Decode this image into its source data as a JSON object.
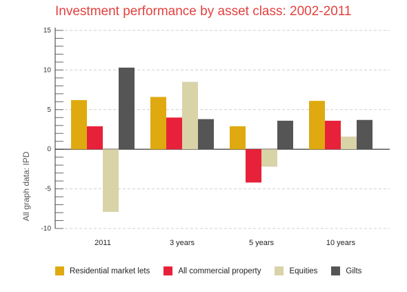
{
  "chart_data": {
    "type": "bar",
    "title": "Investment performance by asset class: 2002-2011",
    "ylabel": "All graph data: IPD",
    "xlabel": "",
    "ylim": [
      -10,
      15
    ],
    "yticks": [
      15,
      10,
      5,
      0,
      -5,
      -10
    ],
    "categories": [
      "2011",
      "3 years",
      "5 years",
      "10 years"
    ],
    "grid": true,
    "legend_position": "bottom",
    "series": [
      {
        "name": "Residential market lets",
        "color": "#dfaa10",
        "values": [
          6.2,
          6.6,
          2.9,
          6.1
        ]
      },
      {
        "name": "All commercial property",
        "color": "#e8213a",
        "values": [
          2.9,
          4.0,
          -4.2,
          3.6
        ]
      },
      {
        "name": "Equities",
        "color": "#d9d3a8",
        "values": [
          -7.9,
          8.5,
          -2.2,
          1.6
        ]
      },
      {
        "name": "Gilts",
        "color": "#555555",
        "values": [
          10.3,
          3.8,
          3.6,
          3.7
        ]
      }
    ]
  }
}
